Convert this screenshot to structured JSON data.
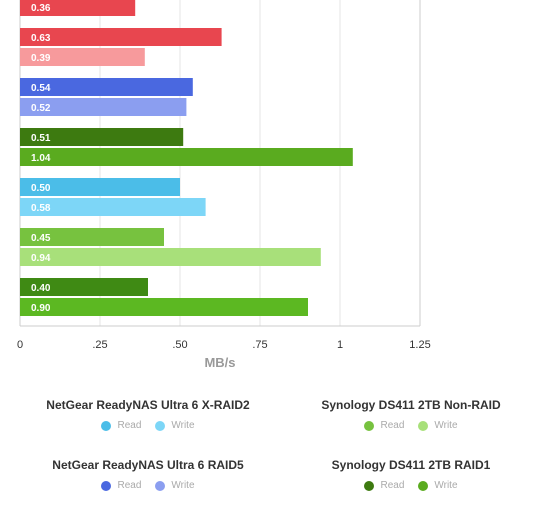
{
  "chart_data": {
    "type": "bar",
    "orientation": "horizontal",
    "xlabel": "MB/s",
    "xlim": [
      0,
      1.25
    ],
    "xticks": [
      "0",
      ".25",
      ".50",
      ".75",
      "1",
      "1.25"
    ],
    "grid": true,
    "groups": [
      {
        "bars": [
          {
            "label": "0.36",
            "value": 0.36,
            "color": "#e8464f"
          }
        ]
      },
      {
        "bars": [
          {
            "label": "0.63",
            "value": 0.63,
            "color": "#e8464f"
          },
          {
            "label": "0.39",
            "value": 0.39,
            "color": "#f79a9c"
          }
        ]
      },
      {
        "bars": [
          {
            "label": "0.54",
            "value": 0.54,
            "color": "#4a68e0"
          },
          {
            "label": "0.52",
            "value": 0.52,
            "color": "#8b9ef0"
          }
        ]
      },
      {
        "bars": [
          {
            "label": "0.51",
            "value": 0.51,
            "color": "#3d7a10"
          },
          {
            "label": "1.04",
            "value": 1.04,
            "color": "#5aab1f"
          }
        ]
      },
      {
        "bars": [
          {
            "label": "0.50",
            "value": 0.5,
            "color": "#4bbde8"
          },
          {
            "label": "0.58",
            "value": 0.58,
            "color": "#7dd6f7"
          }
        ]
      },
      {
        "bars": [
          {
            "label": "0.45",
            "value": 0.45,
            "color": "#77c23f"
          },
          {
            "label": "0.94",
            "value": 0.94,
            "color": "#a8e07a"
          }
        ]
      },
      {
        "bars": [
          {
            "label": "0.40",
            "value": 0.4,
            "color": "#3f8a14"
          },
          {
            "label": "0.90",
            "value": 0.9,
            "color": "#5cb822"
          }
        ]
      }
    ],
    "legend": [
      {
        "title": "NetGear ReadyNAS Ultra 6 X-RAID2",
        "read_label": "Read",
        "write_label": "Write",
        "read_color": "#4bbde8",
        "write_color": "#7dd6f7"
      },
      {
        "title": "Synology DS411 2TB Non-RAID",
        "read_label": "Read",
        "write_label": "Write",
        "read_color": "#77c23f",
        "write_color": "#a8e07a"
      },
      {
        "title": "NetGear ReadyNAS Ultra 6 RAID5",
        "read_label": "Read",
        "write_label": "Write",
        "read_color": "#4a68e0",
        "write_color": "#8b9ef0"
      },
      {
        "title": "Synology DS411 2TB RAID1",
        "read_label": "Read",
        "write_label": "Write",
        "read_color": "#3d7a10",
        "write_color": "#5aab1f"
      }
    ]
  }
}
